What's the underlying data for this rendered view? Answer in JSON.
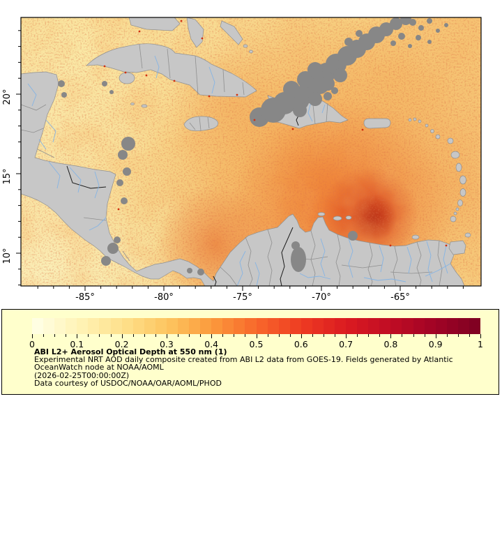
{
  "map": {
    "x_axis": {
      "tick_labels": [
        "-85°",
        "-80°",
        "-75°",
        "-70°",
        "-65°"
      ],
      "tick_values": [
        -85,
        -80,
        -75,
        -70,
        -65
      ],
      "minor_step_deg": 1
    },
    "y_axis": {
      "tick_labels": [
        "20°",
        "15°",
        "10°"
      ],
      "tick_values": [
        20,
        15,
        10
      ],
      "minor_step_deg": 1
    },
    "colors": {
      "land": "#c7c7c7",
      "cloud_no_data": "#878787",
      "river": "#85b4e4",
      "border_gray": "#8f8f8f",
      "border_black": "#1a1a1a",
      "frame": "#000000",
      "ocean_low_aod": "#fbf1bc",
      "ocean_mid_aod": "#f7d182",
      "ocean_high_aod": "#d53a18"
    }
  },
  "legend": {
    "background": "#ffffcc",
    "border_color": "#000000",
    "title": "ABI L2+ Aerosol Optical Depth at 550 nm (1)",
    "lines": [
      "Experimental NRT AOD daily composite created from ABI L2 data from GOES-19. Fields generated by Atlantic",
      "OceanWatch node at NOAA/AOML",
      "(2026-02-25T00:00:00Z)",
      "Data courtesy of USDOC/NOAA/OAR/AOML/PHOD"
    ],
    "colorbar": {
      "min": 0,
      "max": 1,
      "cells": 40,
      "minor_tick_step": 0.025,
      "tick_labels": [
        "0",
        "0.1",
        "0.2",
        "0.3",
        "0.4",
        "0.5",
        "0.6",
        "0.7",
        "0.8",
        "0.9",
        "1"
      ],
      "tick_values": [
        0,
        0.1,
        0.2,
        0.3,
        0.4,
        0.5,
        0.6,
        0.7,
        0.8,
        0.9,
        1
      ],
      "ramp": [
        "#FFFFE8",
        "#FFF4B8",
        "#FEE18C",
        "#FDC661",
        "#FB9A3C",
        "#F8682B",
        "#EE3B22",
        "#DB1B21",
        "#C00C24",
        "#A00325",
        "#7D0122"
      ]
    }
  }
}
